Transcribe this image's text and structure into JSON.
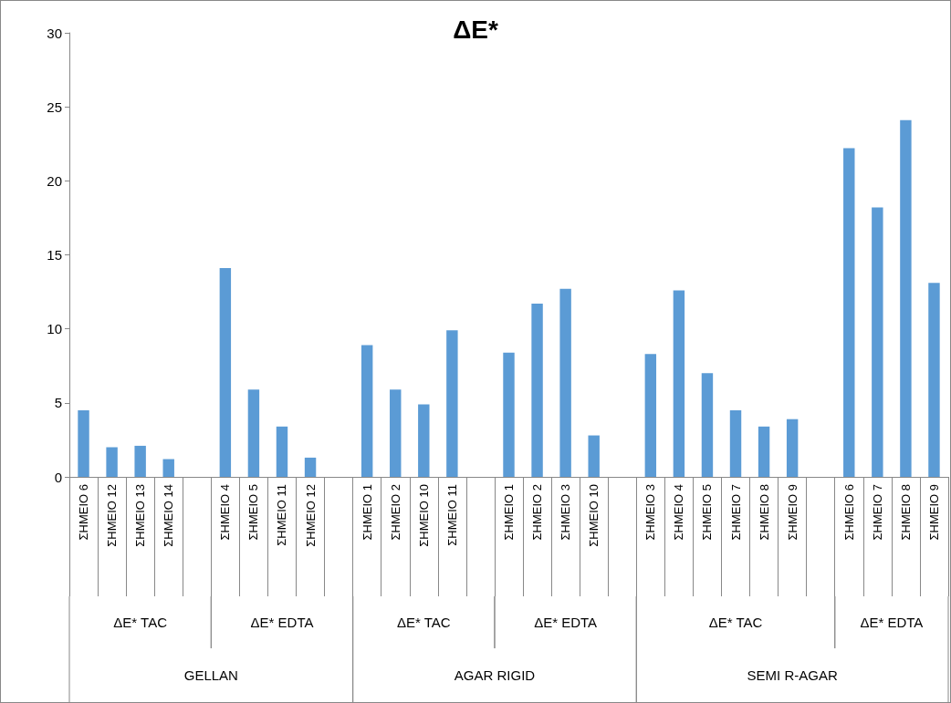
{
  "chart_data": {
    "type": "bar",
    "title": "ΔE*",
    "categories": [
      "ΣΗΜΕΙΟ 6",
      "ΣΗΜΕΙΟ 12",
      "ΣΗΜΕΙΟ 13",
      "ΣΗΜΕΙΟ 14",
      null,
      "ΣΗΜΕΙΟ 4",
      "ΣΗΜΕΙΟ 5",
      "ΣΗΜΕΙΟ 11",
      "ΣΗΜΕΙΟ 12",
      null,
      "ΣΗΜΕΙΟ 1",
      "ΣΗΜΕΙΟ 2",
      "ΣΗΜΕΙΟ 10",
      "ΣΗΜΕΙΟ 11",
      null,
      "ΣΗΜΕΙΟ 1",
      "ΣΗΜΕΙΟ 2",
      "ΣΗΜΕΙΟ 3",
      "ΣΗΜΕΙΟ 10",
      null,
      "ΣΗΜΕΙΟ 3",
      "ΣΗΜΕΙΟ 4",
      "ΣΗΜΕΙΟ 5",
      "ΣΗΜΕΙΟ 7",
      "ΣΗΜΕΙΟ 8",
      "ΣΗΜΕΙΟ 9",
      null,
      "ΣΗΜΕΙΟ 6",
      "ΣΗΜΕΙΟ 7",
      "ΣΗΜΕΙΟ 8",
      "ΣΗΜΕΙΟ 9"
    ],
    "values": [
      4.5,
      2.0,
      2.1,
      1.2,
      null,
      14.1,
      5.9,
      3.4,
      1.3,
      null,
      8.9,
      5.9,
      4.9,
      9.9,
      null,
      8.4,
      11.7,
      12.7,
      2.8,
      null,
      8.3,
      12.6,
      7.0,
      4.5,
      3.4,
      3.9,
      null,
      22.2,
      18.2,
      24.1,
      13.1
    ],
    "color": "#5b9bd5",
    "ylim": [
      0,
      30
    ],
    "yticks": [
      0,
      5,
      10,
      15,
      20,
      25,
      30
    ],
    "grid": false,
    "annotations": [
      "ΔE* TAC",
      "ΔE* EDTA",
      "ΔE* TAC",
      "ΔE* EDTA",
      "ΔE* TAC",
      "ΔE* EDTA",
      "GELLAN",
      "AGAR RIGID",
      "SEMI R-AGAR"
    ]
  }
}
